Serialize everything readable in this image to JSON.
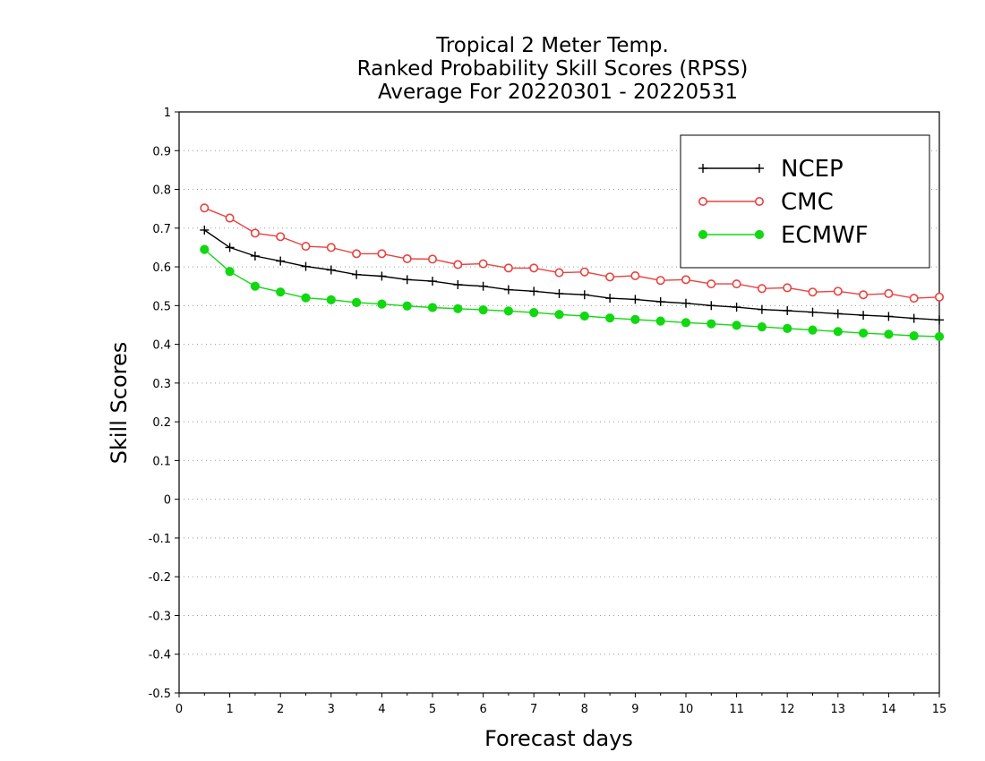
{
  "chart_data": {
    "type": "line",
    "title_lines": [
      "Tropical 2 Meter Temp.",
      "Ranked Probability Skill Scores (RPSS)",
      "Average For 20220301 - 20220531"
    ],
    "xlabel": "Forecast days",
    "ylabel": "Skill Scores",
    "xlim": [
      0,
      15
    ],
    "ylim": [
      -0.5,
      1
    ],
    "xticks": [
      "0",
      "1",
      "2",
      "3",
      "4",
      "5",
      "6",
      "7",
      "8",
      "9",
      "10",
      "11",
      "12",
      "13",
      "14",
      "15"
    ],
    "yticks": [
      "-0.5",
      "-0.4",
      "-0.3",
      "-0.2",
      "-0.1",
      "0",
      "0.1",
      "0.2",
      "0.3",
      "0.4",
      "0.5",
      "0.6",
      "0.7",
      "0.8",
      "0.9",
      "1"
    ],
    "grid": "horizontal dotted",
    "legend_position": "top-right",
    "x": [
      0.5,
      1,
      1.5,
      2,
      2.5,
      3,
      3.5,
      4,
      4.5,
      5,
      5.5,
      6,
      6.5,
      7,
      7.5,
      8,
      8.5,
      9,
      9.5,
      10,
      10.5,
      11,
      11.5,
      12,
      12.5,
      13,
      13.5,
      14,
      14.5,
      15
    ],
    "series": [
      {
        "name": "NCEP",
        "color": "#000000",
        "marker": "plus",
        "values": [
          0.695,
          0.65,
          0.628,
          0.615,
          0.601,
          0.592,
          0.58,
          0.576,
          0.567,
          0.563,
          0.554,
          0.55,
          0.541,
          0.537,
          0.531,
          0.528,
          0.519,
          0.516,
          0.51,
          0.506,
          0.5,
          0.496,
          0.49,
          0.487,
          0.483,
          0.479,
          0.475,
          0.472,
          0.467,
          0.463
        ]
      },
      {
        "name": "CMC",
        "color": "#e8423f",
        "marker": "open-circle",
        "values": [
          0.752,
          0.726,
          0.687,
          0.678,
          0.653,
          0.65,
          0.634,
          0.634,
          0.621,
          0.62,
          0.606,
          0.608,
          0.597,
          0.597,
          0.585,
          0.587,
          0.574,
          0.577,
          0.565,
          0.567,
          0.556,
          0.556,
          0.544,
          0.546,
          0.535,
          0.537,
          0.528,
          0.531,
          0.519,
          0.522
        ]
      },
      {
        "name": "ECMWF",
        "color": "#11d811",
        "marker": "filled-circle",
        "values": [
          0.645,
          0.588,
          0.55,
          0.535,
          0.52,
          0.515,
          0.508,
          0.504,
          0.499,
          0.495,
          0.492,
          0.489,
          0.486,
          0.482,
          0.477,
          0.473,
          0.468,
          0.464,
          0.46,
          0.456,
          0.453,
          0.449,
          0.445,
          0.441,
          0.437,
          0.433,
          0.429,
          0.426,
          0.422,
          0.42
        ]
      }
    ]
  }
}
